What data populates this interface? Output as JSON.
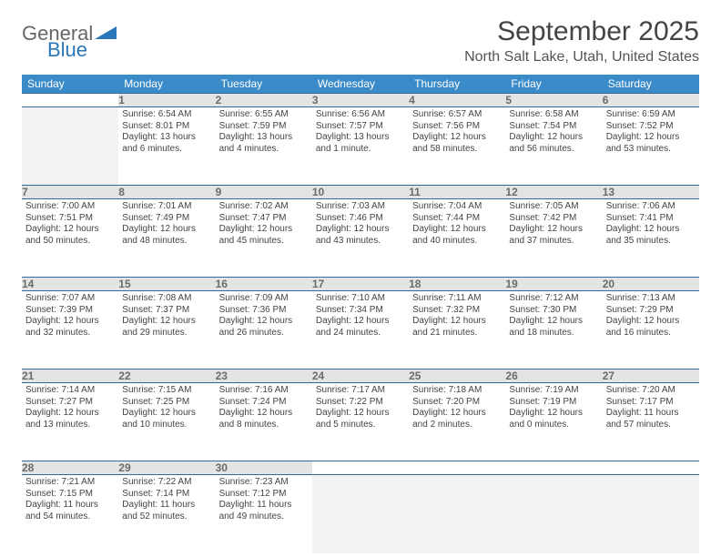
{
  "brand": {
    "part1": "General",
    "part2": "Blue"
  },
  "title": "September 2025",
  "location": "North Salt Lake, Utah, United States",
  "colors": {
    "header_bg": "#3b8bc8",
    "header_text": "#ffffff",
    "daynum_bg": "#e4e4e4",
    "daynum_text": "#6b6b6b",
    "row_border": "#2f6aa0",
    "text": "#444444",
    "brand_gray": "#666666",
    "brand_blue": "#2a77bb",
    "blank_bg": "#f3f3f3"
  },
  "day_headers": [
    "Sunday",
    "Monday",
    "Tuesday",
    "Wednesday",
    "Thursday",
    "Friday",
    "Saturday"
  ],
  "weeks": [
    [
      null,
      {
        "n": "1",
        "sr": "Sunrise: 6:54 AM",
        "ss": "Sunset: 8:01 PM",
        "dl": "Daylight: 13 hours and 6 minutes."
      },
      {
        "n": "2",
        "sr": "Sunrise: 6:55 AM",
        "ss": "Sunset: 7:59 PM",
        "dl": "Daylight: 13 hours and 4 minutes."
      },
      {
        "n": "3",
        "sr": "Sunrise: 6:56 AM",
        "ss": "Sunset: 7:57 PM",
        "dl": "Daylight: 13 hours and 1 minute."
      },
      {
        "n": "4",
        "sr": "Sunrise: 6:57 AM",
        "ss": "Sunset: 7:56 PM",
        "dl": "Daylight: 12 hours and 58 minutes."
      },
      {
        "n": "5",
        "sr": "Sunrise: 6:58 AM",
        "ss": "Sunset: 7:54 PM",
        "dl": "Daylight: 12 hours and 56 minutes."
      },
      {
        "n": "6",
        "sr": "Sunrise: 6:59 AM",
        "ss": "Sunset: 7:52 PM",
        "dl": "Daylight: 12 hours and 53 minutes."
      }
    ],
    [
      {
        "n": "7",
        "sr": "Sunrise: 7:00 AM",
        "ss": "Sunset: 7:51 PM",
        "dl": "Daylight: 12 hours and 50 minutes."
      },
      {
        "n": "8",
        "sr": "Sunrise: 7:01 AM",
        "ss": "Sunset: 7:49 PM",
        "dl": "Daylight: 12 hours and 48 minutes."
      },
      {
        "n": "9",
        "sr": "Sunrise: 7:02 AM",
        "ss": "Sunset: 7:47 PM",
        "dl": "Daylight: 12 hours and 45 minutes."
      },
      {
        "n": "10",
        "sr": "Sunrise: 7:03 AM",
        "ss": "Sunset: 7:46 PM",
        "dl": "Daylight: 12 hours and 43 minutes."
      },
      {
        "n": "11",
        "sr": "Sunrise: 7:04 AM",
        "ss": "Sunset: 7:44 PM",
        "dl": "Daylight: 12 hours and 40 minutes."
      },
      {
        "n": "12",
        "sr": "Sunrise: 7:05 AM",
        "ss": "Sunset: 7:42 PM",
        "dl": "Daylight: 12 hours and 37 minutes."
      },
      {
        "n": "13",
        "sr": "Sunrise: 7:06 AM",
        "ss": "Sunset: 7:41 PM",
        "dl": "Daylight: 12 hours and 35 minutes."
      }
    ],
    [
      {
        "n": "14",
        "sr": "Sunrise: 7:07 AM",
        "ss": "Sunset: 7:39 PM",
        "dl": "Daylight: 12 hours and 32 minutes."
      },
      {
        "n": "15",
        "sr": "Sunrise: 7:08 AM",
        "ss": "Sunset: 7:37 PM",
        "dl": "Daylight: 12 hours and 29 minutes."
      },
      {
        "n": "16",
        "sr": "Sunrise: 7:09 AM",
        "ss": "Sunset: 7:36 PM",
        "dl": "Daylight: 12 hours and 26 minutes."
      },
      {
        "n": "17",
        "sr": "Sunrise: 7:10 AM",
        "ss": "Sunset: 7:34 PM",
        "dl": "Daylight: 12 hours and 24 minutes."
      },
      {
        "n": "18",
        "sr": "Sunrise: 7:11 AM",
        "ss": "Sunset: 7:32 PM",
        "dl": "Daylight: 12 hours and 21 minutes."
      },
      {
        "n": "19",
        "sr": "Sunrise: 7:12 AM",
        "ss": "Sunset: 7:30 PM",
        "dl": "Daylight: 12 hours and 18 minutes."
      },
      {
        "n": "20",
        "sr": "Sunrise: 7:13 AM",
        "ss": "Sunset: 7:29 PM",
        "dl": "Daylight: 12 hours and 16 minutes."
      }
    ],
    [
      {
        "n": "21",
        "sr": "Sunrise: 7:14 AM",
        "ss": "Sunset: 7:27 PM",
        "dl": "Daylight: 12 hours and 13 minutes."
      },
      {
        "n": "22",
        "sr": "Sunrise: 7:15 AM",
        "ss": "Sunset: 7:25 PM",
        "dl": "Daylight: 12 hours and 10 minutes."
      },
      {
        "n": "23",
        "sr": "Sunrise: 7:16 AM",
        "ss": "Sunset: 7:24 PM",
        "dl": "Daylight: 12 hours and 8 minutes."
      },
      {
        "n": "24",
        "sr": "Sunrise: 7:17 AM",
        "ss": "Sunset: 7:22 PM",
        "dl": "Daylight: 12 hours and 5 minutes."
      },
      {
        "n": "25",
        "sr": "Sunrise: 7:18 AM",
        "ss": "Sunset: 7:20 PM",
        "dl": "Daylight: 12 hours and 2 minutes."
      },
      {
        "n": "26",
        "sr": "Sunrise: 7:19 AM",
        "ss": "Sunset: 7:19 PM",
        "dl": "Daylight: 12 hours and 0 minutes."
      },
      {
        "n": "27",
        "sr": "Sunrise: 7:20 AM",
        "ss": "Sunset: 7:17 PM",
        "dl": "Daylight: 11 hours and 57 minutes."
      }
    ],
    [
      {
        "n": "28",
        "sr": "Sunrise: 7:21 AM",
        "ss": "Sunset: 7:15 PM",
        "dl": "Daylight: 11 hours and 54 minutes."
      },
      {
        "n": "29",
        "sr": "Sunrise: 7:22 AM",
        "ss": "Sunset: 7:14 PM",
        "dl": "Daylight: 11 hours and 52 minutes."
      },
      {
        "n": "30",
        "sr": "Sunrise: 7:23 AM",
        "ss": "Sunset: 7:12 PM",
        "dl": "Daylight: 11 hours and 49 minutes."
      },
      null,
      null,
      null,
      null
    ]
  ]
}
